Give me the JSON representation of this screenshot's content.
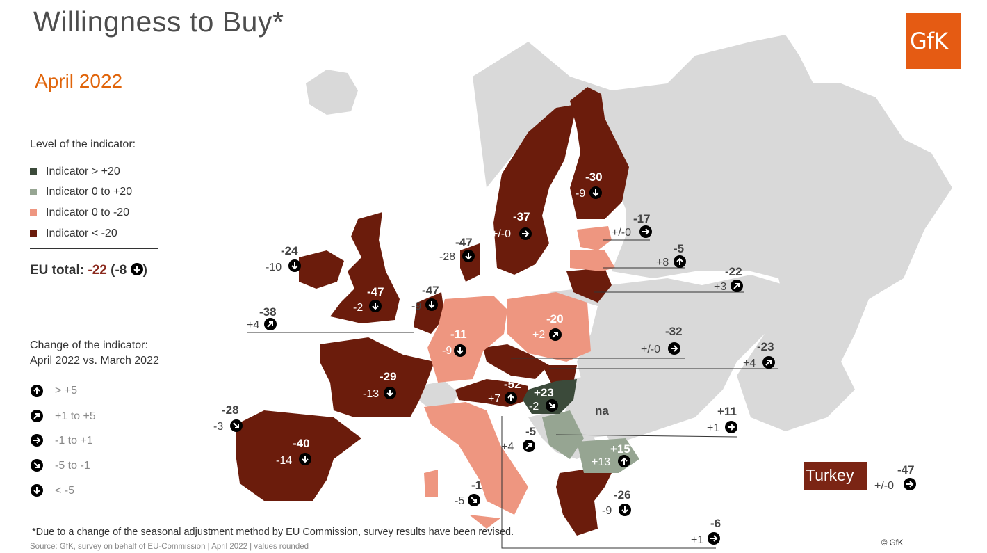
{
  "header": {
    "title": "Willingness to Buy*",
    "subtitle": "April 2022",
    "logo_text": "GfK"
  },
  "colors": {
    "above_20": "#3b4a3a",
    "pos_0_20": "#96a592",
    "neg_0_20": "#ee9680",
    "below_neg20": "#6b1c0c",
    "no_data": "#d9d9d9",
    "accent": "#e0640a"
  },
  "legend_level": {
    "title": "Level of the indicator:",
    "items": [
      {
        "label": "Indicator > +20",
        "color": "#3b4a3a"
      },
      {
        "label": "Indicator 0 to +20",
        "color": "#96a592"
      },
      {
        "label": "Indicator 0 to -20",
        "color": "#ee9680"
      },
      {
        "label": "Indicator < -20",
        "color": "#6b1c0c"
      }
    ]
  },
  "eu_total": {
    "label": "EU total:",
    "value": "-22",
    "change": "(-8",
    "close": ")",
    "icon": "arrow-down-icon"
  },
  "legend_change": {
    "title_line1": "Change of the indicator:",
    "title_line2": "April 2022 vs. March 2022",
    "items": [
      {
        "label": "> +5",
        "icon": "arrow-up-icon"
      },
      {
        "label": "+1 to +5",
        "icon": "arrow-up-right-icon"
      },
      {
        "label": "-1 to +1",
        "icon": "arrow-right-icon"
      },
      {
        "label": "-5 to -1",
        "icon": "arrow-down-right-icon"
      },
      {
        "label": "< -5",
        "icon": "arrow-down-icon"
      }
    ]
  },
  "countries": [
    {
      "name": "Ireland",
      "value": "-24",
      "change": "-10",
      "dir": "down"
    },
    {
      "name": "United Kingdom",
      "value": "-47",
      "change": "-2",
      "dir": "down-right"
    },
    {
      "name": "Belgium",
      "value": "-38",
      "change": "+4",
      "dir": "up-right"
    },
    {
      "name": "Netherlands",
      "value": "-47",
      "change": "-9",
      "dir": "down"
    },
    {
      "name": "Denmark",
      "value": "-47",
      "change": "-28",
      "dir": "down"
    },
    {
      "name": "Sweden",
      "value": "-37",
      "change": "+/-0",
      "dir": "right"
    },
    {
      "name": "Finland",
      "value": "-30",
      "change": "-9",
      "dir": "down"
    },
    {
      "name": "Estonia",
      "value": "-17",
      "change": "+/-0",
      "dir": "right"
    },
    {
      "name": "Latvia",
      "value": "-5",
      "change": "+8",
      "dir": "up"
    },
    {
      "name": "Lithuania",
      "value": "-22",
      "change": "+3",
      "dir": "up-right"
    },
    {
      "name": "Germany",
      "value": "-11",
      "change": "-9",
      "dir": "down"
    },
    {
      "name": "Poland",
      "value": "-20",
      "change": "+2",
      "dir": "up-right"
    },
    {
      "name": "Czech Republic",
      "value": "-32",
      "change": "+/-0",
      "dir": "right"
    },
    {
      "name": "Slovakia",
      "value": "-23",
      "change": "+4",
      "dir": "up-right"
    },
    {
      "name": "France",
      "value": "-29",
      "change": "-13",
      "dir": "down"
    },
    {
      "name": "Portugal",
      "value": "-28",
      "change": "-3",
      "dir": "down-right"
    },
    {
      "name": "Spain",
      "value": "-40",
      "change": "-14",
      "dir": "down"
    },
    {
      "name": "Austria",
      "value": "-52",
      "change": "+7",
      "dir": "up"
    },
    {
      "name": "Hungary",
      "value": "+23",
      "change": "-2",
      "dir": "down-right"
    },
    {
      "name": "Romania",
      "value": "na",
      "change": "",
      "dir": ""
    },
    {
      "name": "Croatia",
      "value": "+11",
      "change": "+1",
      "dir": "right"
    },
    {
      "name": "Slovenia",
      "value": "-5",
      "change": "+4",
      "dir": "up-right"
    },
    {
      "name": "Bulgaria",
      "value": "+15",
      "change": "+13",
      "dir": "up"
    },
    {
      "name": "Italy",
      "value": "-1",
      "change": "-5",
      "dir": "down-right"
    },
    {
      "name": "Greece",
      "value": "-26",
      "change": "-9",
      "dir": "down"
    },
    {
      "name": "Malta",
      "value": "-6",
      "change": "+1",
      "dir": "right"
    },
    {
      "name": "Turkey",
      "value": "-47",
      "change": "+/-0",
      "dir": "right",
      "label": "Turkey"
    }
  ],
  "footnote": "*Due to a change of the seasonal adjustment method by EU Commission, survey results have been revised.",
  "source": "Source: GfK, survey on behalf of EU-Commission | April 2022 | values rounded",
  "copyright": "© GfK"
}
